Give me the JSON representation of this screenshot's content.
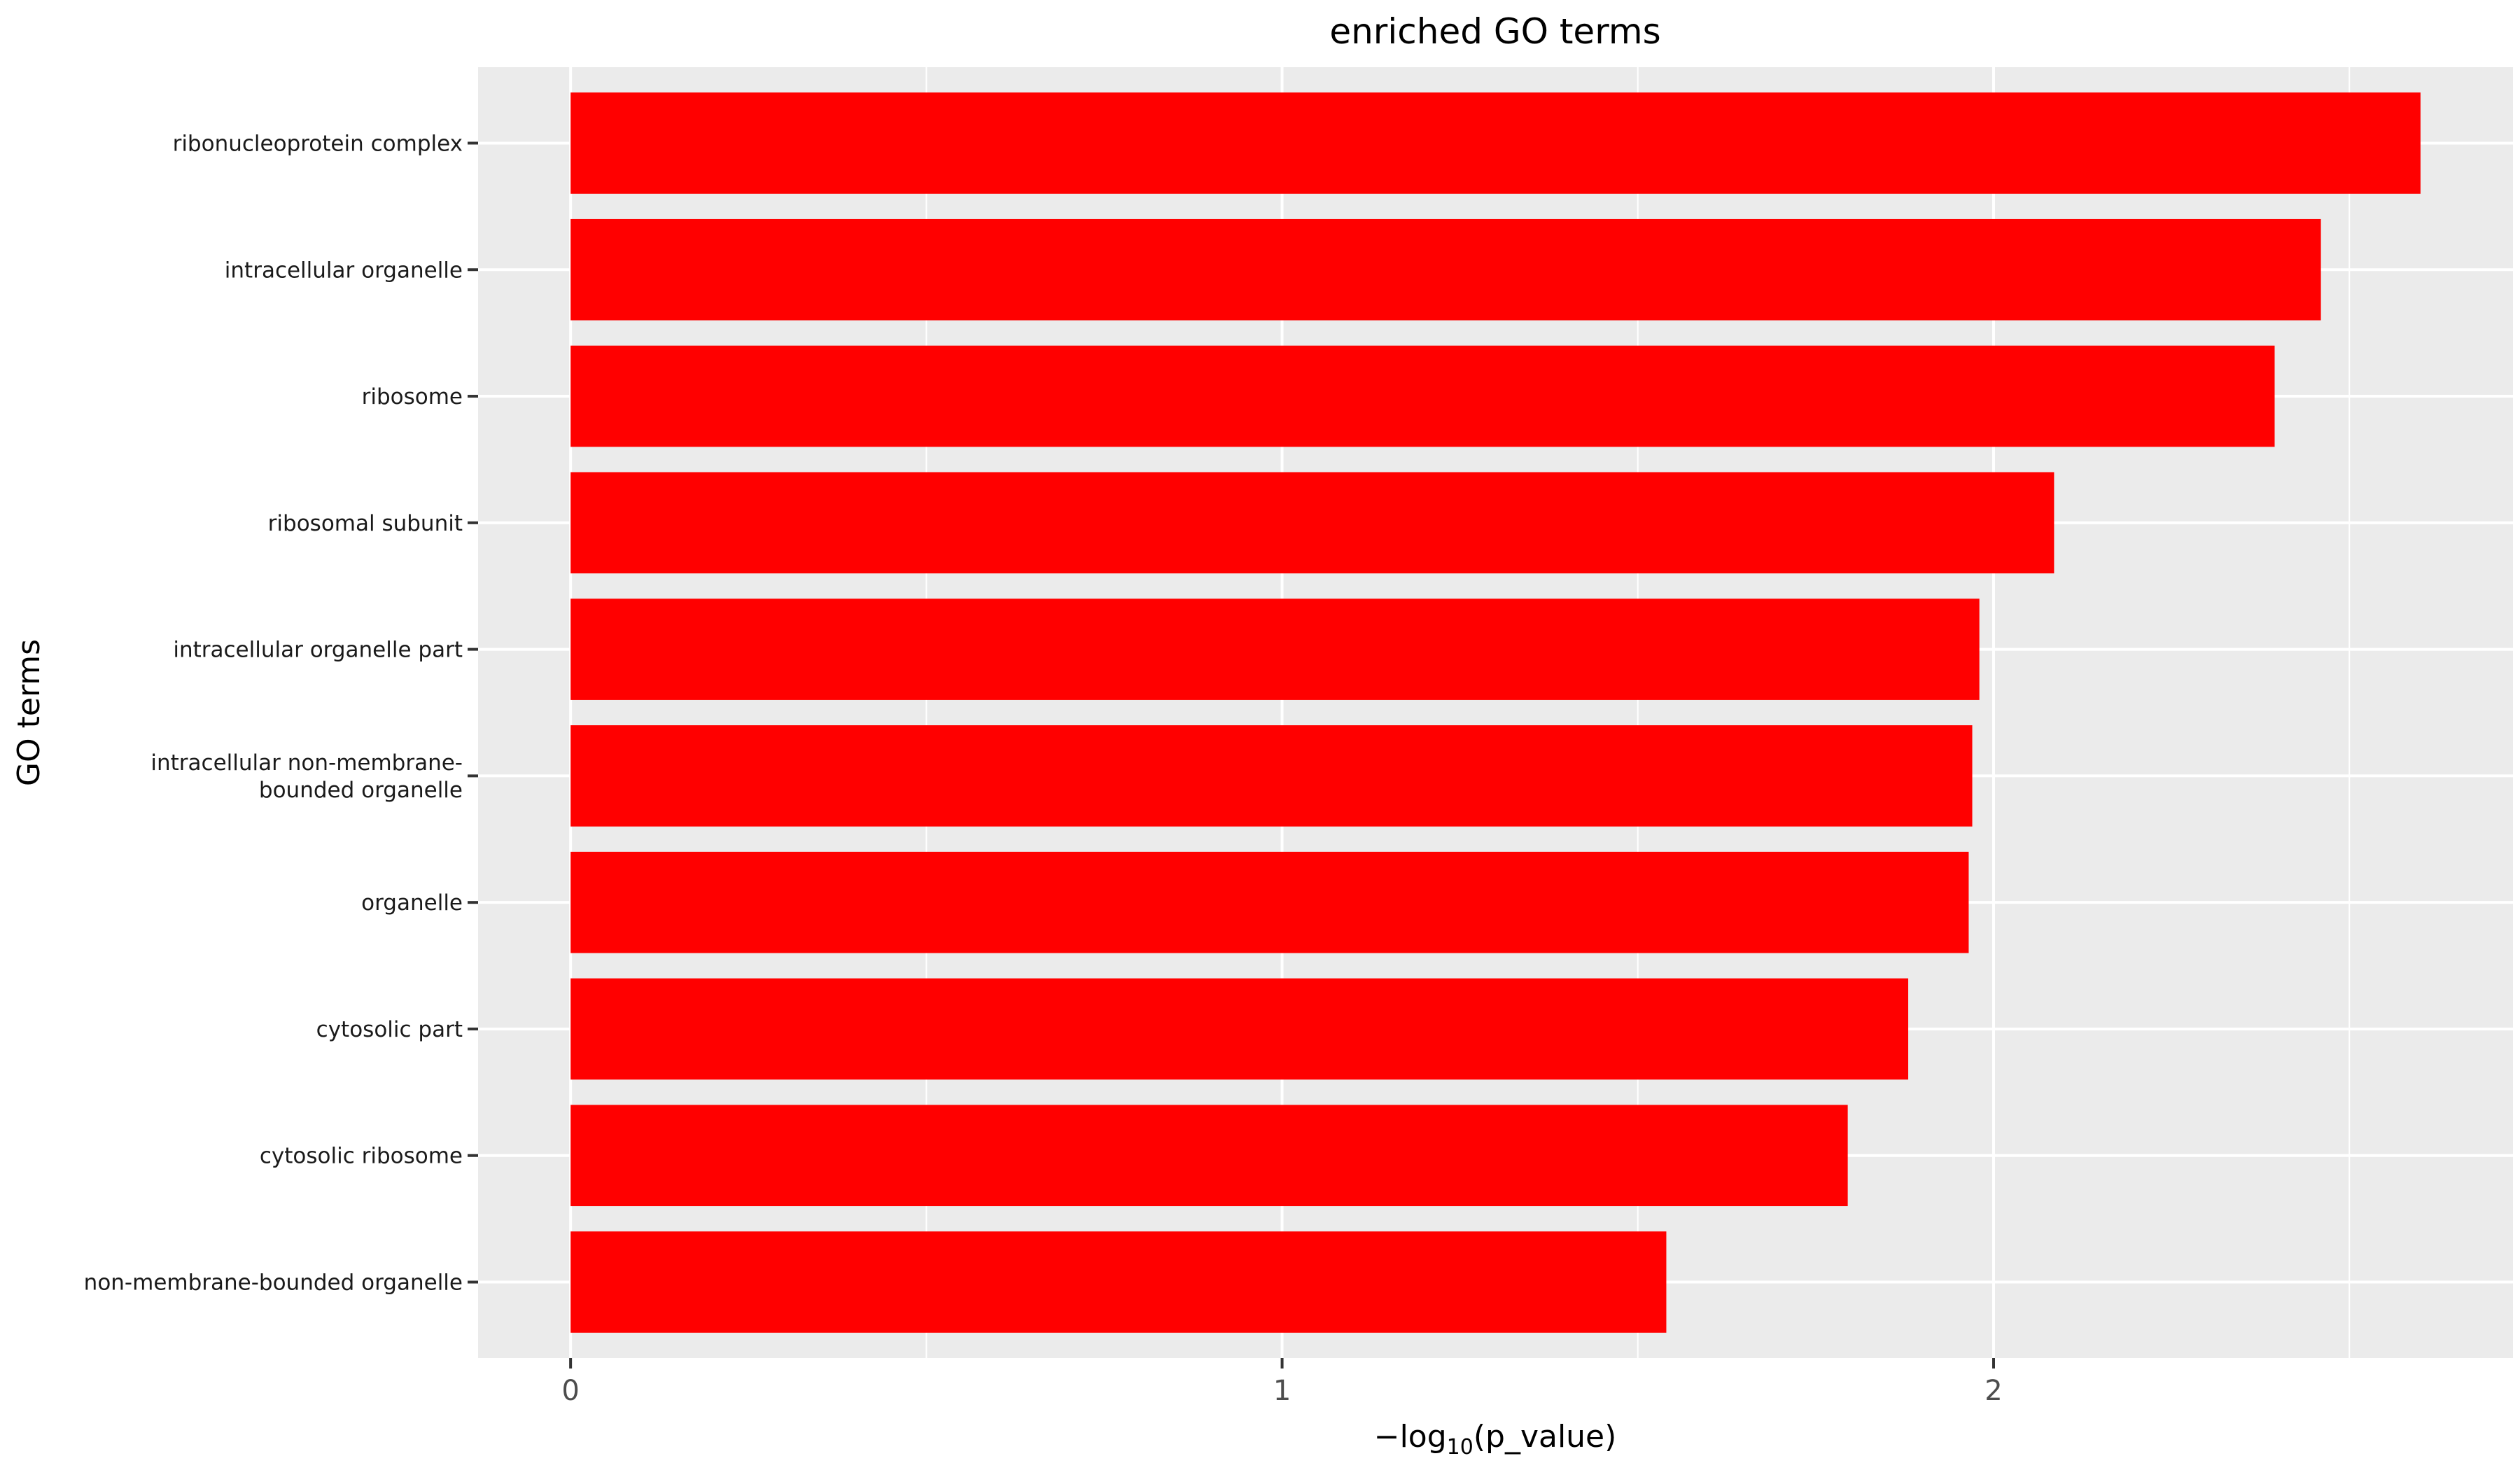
{
  "colors": {
    "panel_background": "#EBEBEB",
    "grid_line": "#FFFFFF",
    "bar_fill": "#FF0000",
    "tick_mark": "#333333"
  },
  "chart_data": {
    "type": "bar",
    "orientation": "horizontal",
    "title": "enriched GO terms",
    "xlabel": {
      "prefix": "−log",
      "subscript": "10",
      "suffix": "(p_value)"
    },
    "ylabel": "GO terms",
    "categories": [
      "ribonucleoprotein complex",
      "intracellular organelle",
      "ribosome",
      "ribosomal subunit",
      "intracellular organelle part",
      "intracellular non-membrane-\nbounded organelle",
      "organelle",
      "cytosolic part",
      "cytosolic ribosome",
      "non-membrane-bounded organelle"
    ],
    "values": [
      2.6,
      2.46,
      2.395,
      2.085,
      1.98,
      1.97,
      1.965,
      1.88,
      1.795,
      1.54
    ],
    "xlim": [
      -0.13,
      2.73
    ],
    "xticks": [
      0,
      1,
      2
    ],
    "x_minor_gridlines": [
      0.5,
      1.5,
      2.5
    ],
    "grid": true,
    "legend": "none"
  }
}
